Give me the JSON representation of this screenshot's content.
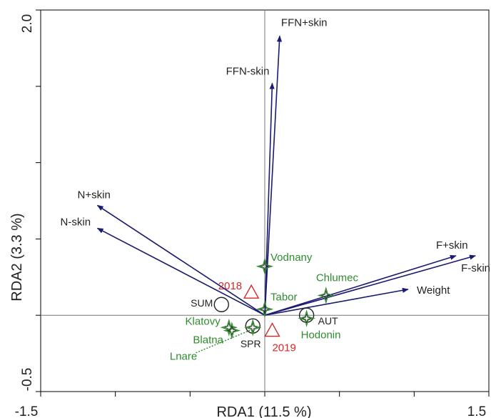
{
  "chart_data": {
    "type": "scatter",
    "title": "",
    "xlabel": "RDA1 (11.5 %)",
    "ylabel": "RDA2 (3.3 %)",
    "xlim": [
      -1.5,
      1.5
    ],
    "ylim": [
      -0.5,
      2.0
    ],
    "x_tick_labels": [
      "-1.5",
      "1.5"
    ],
    "y_tick_labels": [
      "2.0",
      "-0.5"
    ],
    "x_ticks": [
      -1.5,
      -1.0,
      -0.5,
      0,
      0.5,
      1.0,
      1.5
    ],
    "y_ticks": [
      -0.5,
      0,
      0.5,
      1.0,
      1.5,
      2.0
    ],
    "grid": false,
    "reference_lines": [
      0,
      0
    ],
    "colors": {
      "arrows": "#1a1a6e",
      "sites": "#2e8b2e",
      "years": "#d62728",
      "seasons": "#222222",
      "axes": "#000000"
    },
    "arrows": [
      {
        "label": "FFN+skin",
        "x": 0.1,
        "y": 1.83
      },
      {
        "label": "FFN-skin",
        "x": 0.05,
        "y": 1.52
      },
      {
        "label": "N+skin",
        "x": -1.12,
        "y": 0.72
      },
      {
        "label": "N-skin",
        "x": -1.12,
        "y": 0.57
      },
      {
        "label": "F+skin",
        "x": 1.28,
        "y": 0.39
      },
      {
        "label": "F-skin",
        "x": 1.41,
        "y": 0.39
      },
      {
        "label": "Weight",
        "x": 0.96,
        "y": 0.17
      }
    ],
    "sites": [
      {
        "label": "Vodnany",
        "x": 0.0,
        "y": 0.32
      },
      {
        "label": "Tabor",
        "x": 0.0,
        "y": 0.04
      },
      {
        "label": "Chlumec",
        "x": 0.41,
        "y": 0.13
      },
      {
        "label": "Hodonin",
        "x": 0.28,
        "y": -0.02
      },
      {
        "label": "Klatovy",
        "x": -0.24,
        "y": -0.08
      },
      {
        "label": "Blatna",
        "x": -0.22,
        "y": -0.1
      },
      {
        "label": "Lnare",
        "x": -0.08,
        "y": -0.08
      }
    ],
    "years": [
      {
        "label": "2018",
        "x": -0.09,
        "y": 0.15
      },
      {
        "label": "2019",
        "x": 0.05,
        "y": -0.1
      }
    ],
    "seasons": [
      {
        "label": "SUM",
        "x": -0.29,
        "y": 0.07
      },
      {
        "label": "AUT",
        "x": 0.28,
        "y": 0.0
      },
      {
        "label": "SPR",
        "x": -0.08,
        "y": -0.07
      }
    ]
  }
}
